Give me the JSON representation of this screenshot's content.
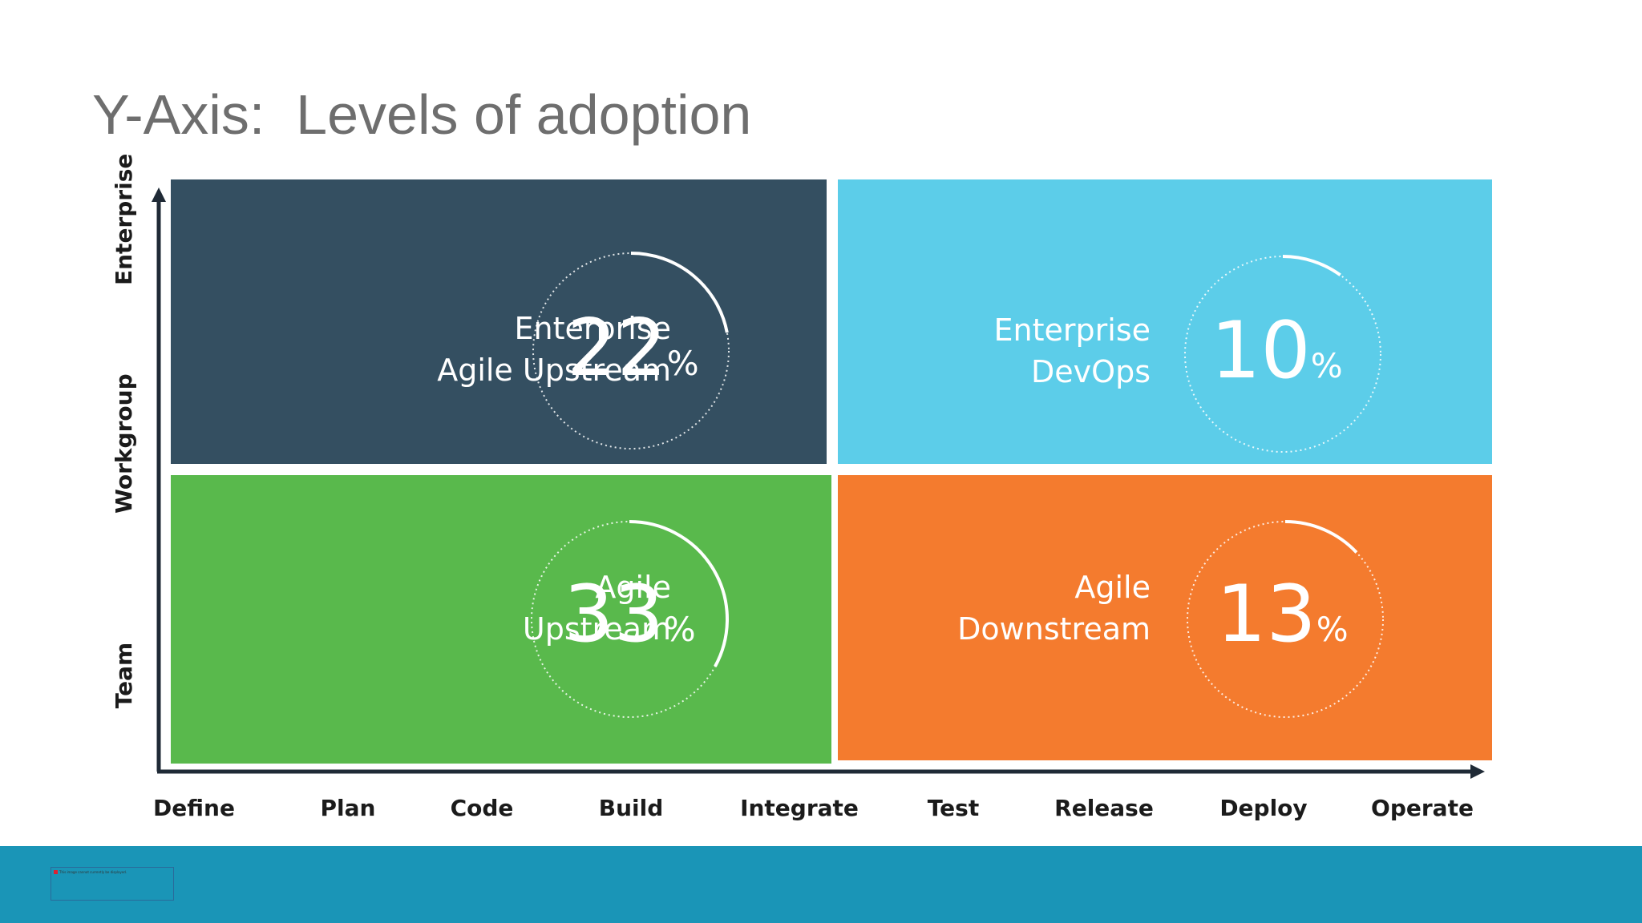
{
  "title": "Y-Axis:  Levels of adoption",
  "y_axis": {
    "labels": [
      "Enterprise",
      "Workgroup",
      "Team"
    ]
  },
  "x_axis": {
    "labels": [
      "Define",
      "Plan",
      "Code",
      "Build",
      "Integrate",
      "Test",
      "Release",
      "Deploy",
      "Operate"
    ]
  },
  "quadrants": [
    {
      "id": "enterprise-agile-upstream",
      "lines": [
        "Enterprise",
        "Agile Upstream"
      ],
      "value": "22",
      "unit": "%",
      "percent": 22,
      "color": "#344f61"
    },
    {
      "id": "enterprise-devops",
      "lines": [
        "Enterprise",
        "DevOps"
      ],
      "value": "10",
      "unit": "%",
      "percent": 10,
      "color": "#5ccde9"
    },
    {
      "id": "agile-upstream",
      "lines": [
        "Agile",
        "Upstream"
      ],
      "value": "33",
      "unit": "%",
      "percent": 33,
      "color": "#59b94c"
    },
    {
      "id": "agile-downstream",
      "lines": [
        "Agile",
        "Downstream"
      ],
      "value": "13",
      "unit": "%",
      "percent": 13,
      "color": "#f47b2e"
    }
  ],
  "colors": {
    "footer": "#1a95b7",
    "axis": "#1f2a36",
    "title": "#6e6e6e"
  },
  "footer": {
    "image_note": "This image cannot currently be displayed."
  }
}
